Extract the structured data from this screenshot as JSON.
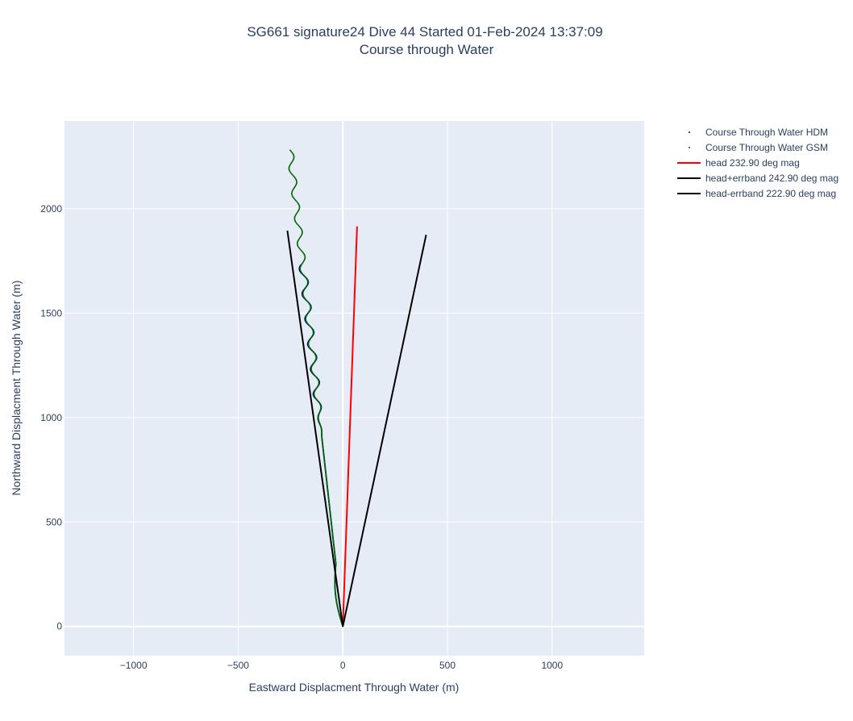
{
  "chart_data": {
    "type": "line",
    "title_line1": "SG661 signature24 Dive 44 Started 01-Feb-2024 13:37:09",
    "title_line2": "Course through Water",
    "xlabel": "Eastward Displacment Through Water (m)",
    "ylabel": "Northward Displacment Through Water (m)",
    "xlim": [
      -1330,
      1440
    ],
    "ylim": [
      -140,
      2420
    ],
    "xticks": [
      -1000,
      -500,
      0,
      500,
      1000
    ],
    "xtick_labels": [
      "−1000",
      "−500",
      "0",
      "500",
      "1000"
    ],
    "yticks": [
      0,
      500,
      1000,
      1500,
      2000
    ],
    "ytick_labels": [
      "0",
      "500",
      "1000",
      "1500",
      "2000"
    ],
    "grid": true,
    "legend_position": "top-right",
    "plot_bgcolor": "#e5ecf6",
    "series": [
      {
        "name": "Course Through Water HDM",
        "kind": "dots",
        "color": "#00008b",
        "x_start": 0,
        "x_end": -192,
        "y_start": 0,
        "y_end": 1730,
        "wiggle_start": 900,
        "wiggle_amp": 18,
        "wiggle_period": 120
      },
      {
        "name": "Course Through Water GSM",
        "kind": "dots",
        "color": "#006400",
        "x_start": 0,
        "x_end": -252,
        "y_start": 0,
        "y_end": 2280,
        "wiggle_start": 900,
        "wiggle_amp": 15,
        "wiggle_period": 120
      },
      {
        "name": "head 232.90 deg mag",
        "kind": "line",
        "color": "#ff0000",
        "x": [
          0,
          68
        ],
        "y": [
          0,
          1915
        ]
      },
      {
        "name": "head+errband 242.90 deg mag",
        "kind": "line",
        "color": "#000000",
        "x": [
          0,
          398
        ],
        "y": [
          0,
          1875
        ]
      },
      {
        "name": "head-errband 222.90 deg mag",
        "kind": "line",
        "color": "#000000",
        "x": [
          0,
          -265
        ],
        "y": [
          0,
          1895
        ]
      }
    ]
  }
}
